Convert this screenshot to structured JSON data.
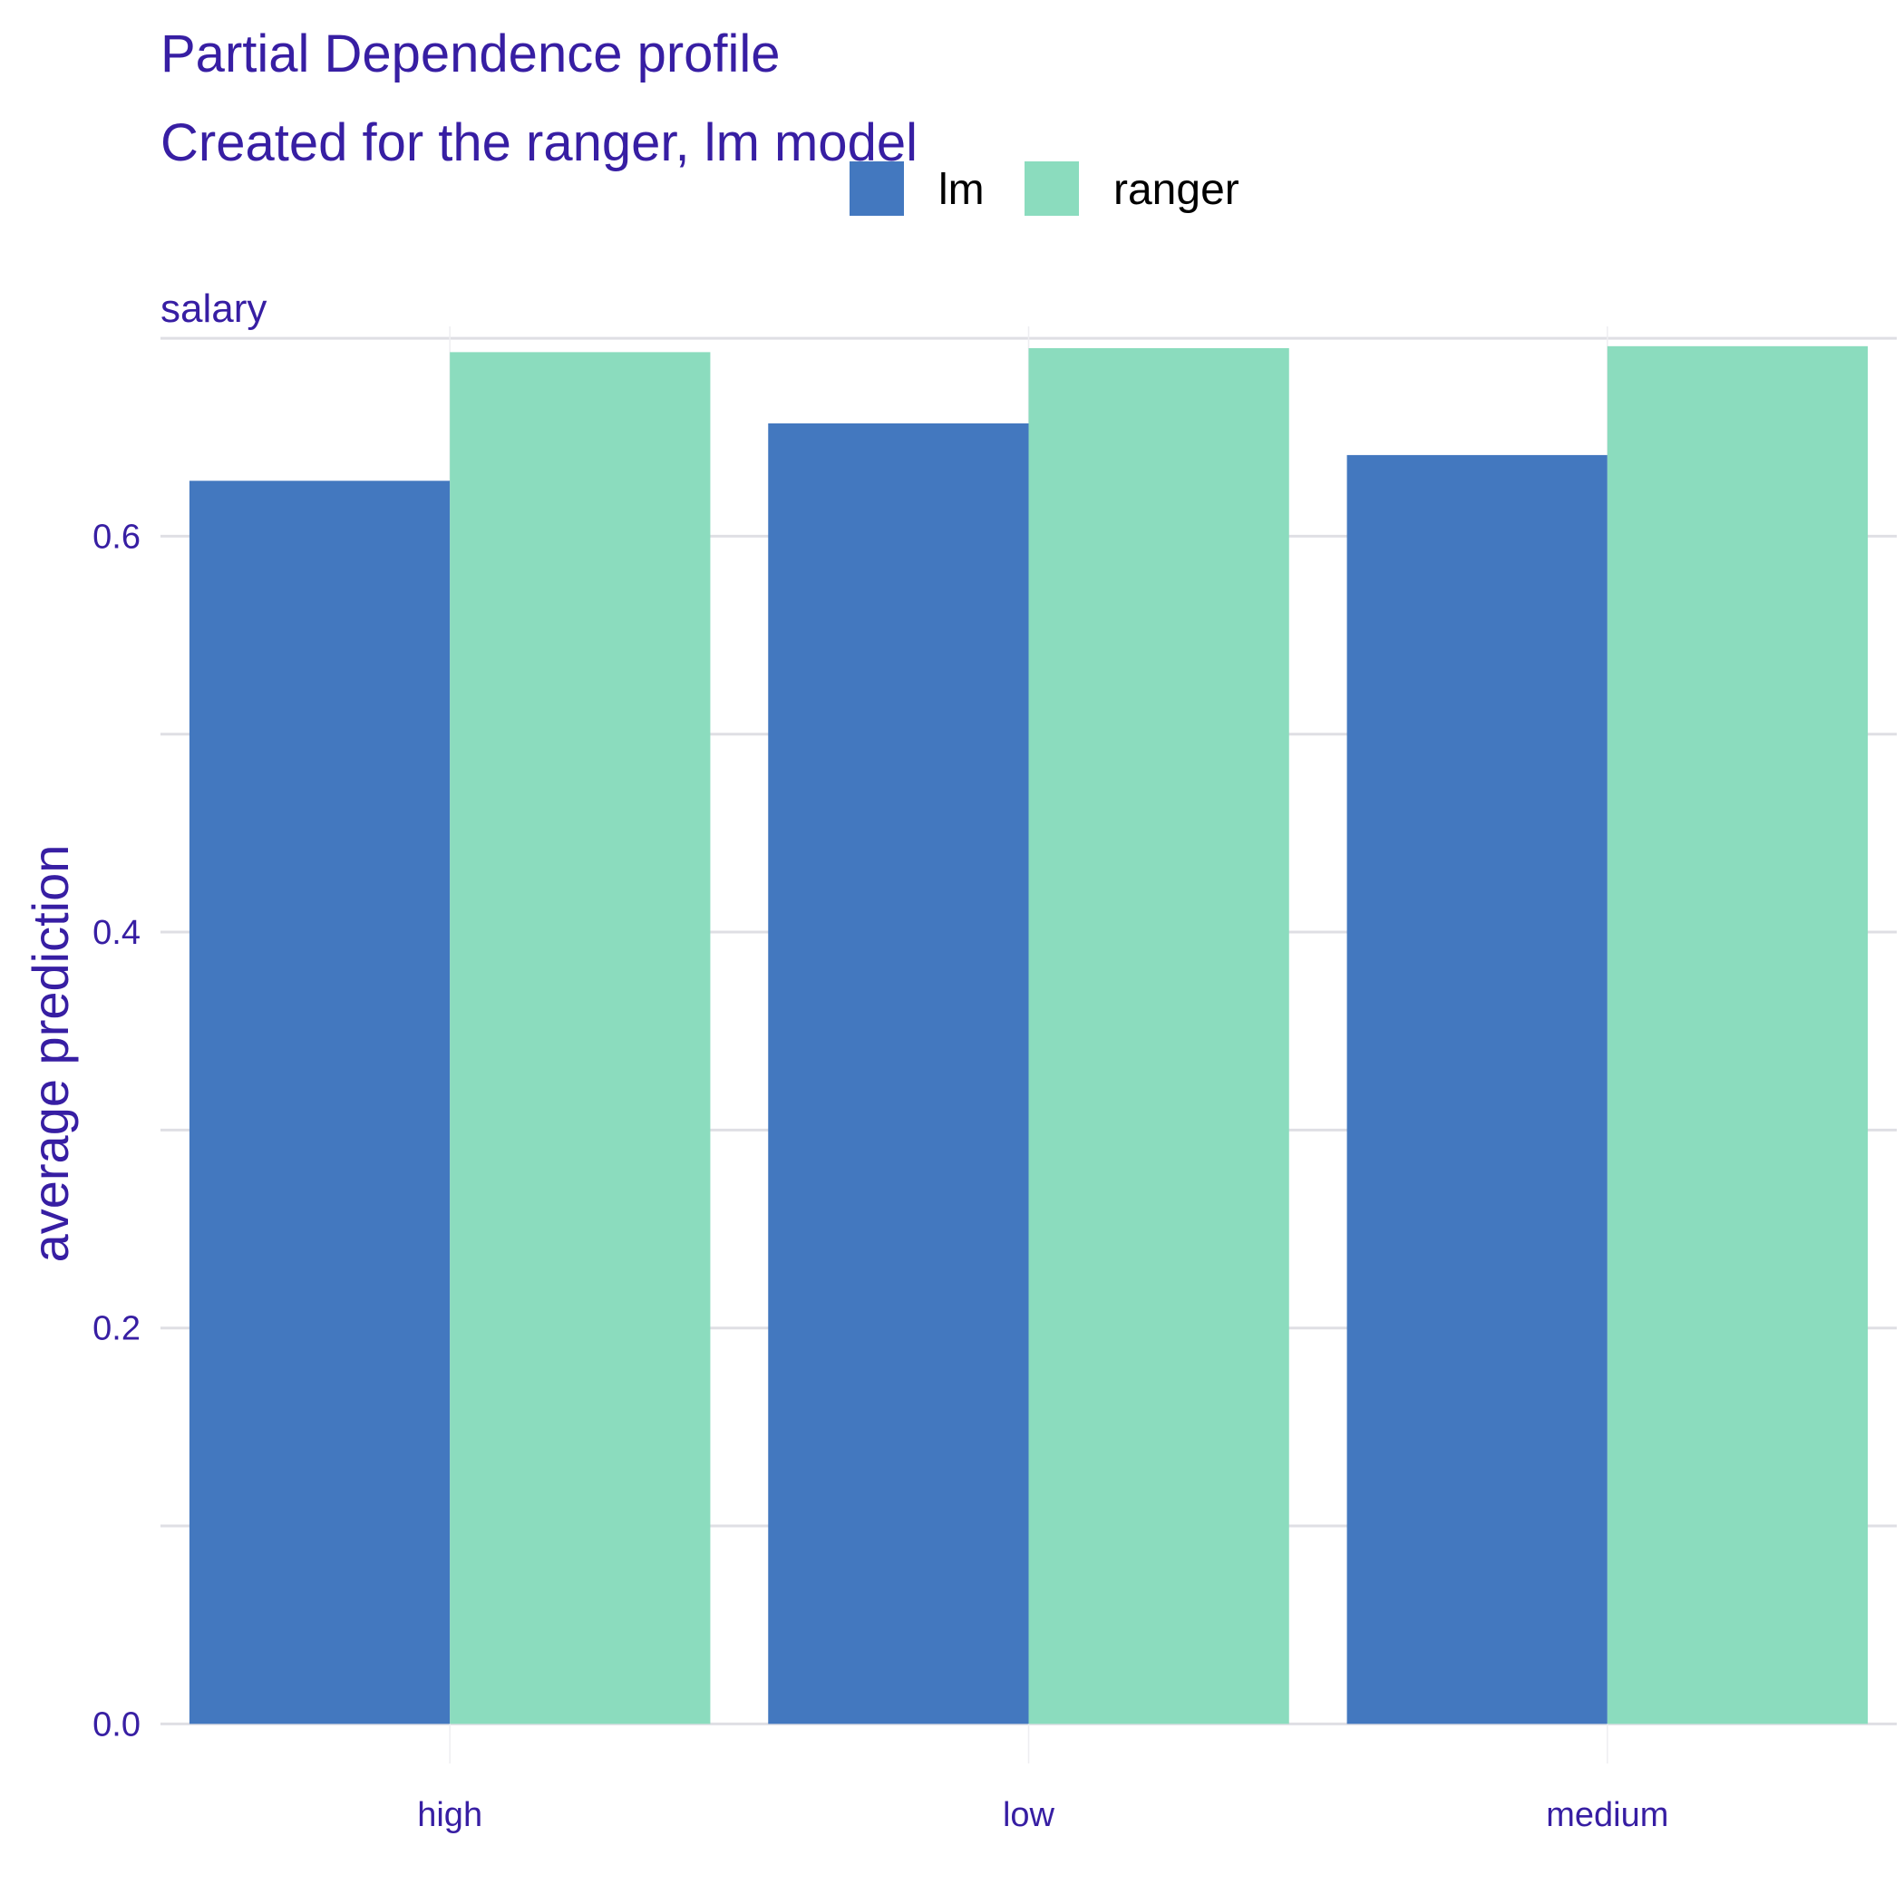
{
  "colors": {
    "text": "#371ea3",
    "grid": "#dfdfe4",
    "background": "#ffffff"
  },
  "chart_data": {
    "type": "bar",
    "title": "Partial Dependence profile",
    "subtitle": "Created for the ranger, lm model",
    "facet_label": "salary",
    "xlabel": "",
    "ylabel": "average prediction",
    "categories": [
      "high",
      "low",
      "medium"
    ],
    "series": [
      {
        "name": "lm",
        "color": "#4378bf",
        "values": [
          0.628,
          0.657,
          0.641
        ]
      },
      {
        "name": "ranger",
        "color": "#8bdcbe",
        "values": [
          0.693,
          0.695,
          0.696
        ]
      }
    ],
    "ylim": [
      -0.02,
      0.706
    ],
    "yticks": [
      0.0,
      0.2,
      0.4,
      0.6
    ],
    "ytick_labels": [
      "0.0",
      "0.2",
      "0.4",
      "0.6"
    ],
    "legend_position": "top",
    "grid": true
  }
}
